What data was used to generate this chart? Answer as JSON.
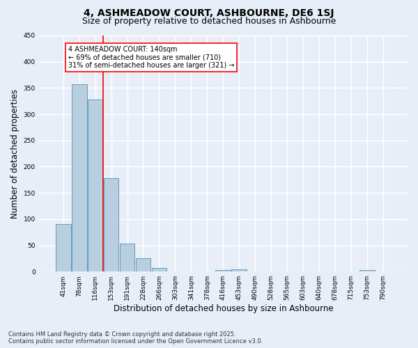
{
  "title": "4, ASHMEADOW COURT, ASHBOURNE, DE6 1SJ",
  "subtitle": "Size of property relative to detached houses in Ashbourne",
  "xlabel": "Distribution of detached houses by size in Ashbourne",
  "ylabel": "Number of detached properties",
  "categories": [
    "41sqm",
    "78sqm",
    "116sqm",
    "153sqm",
    "191sqm",
    "228sqm",
    "266sqm",
    "303sqm",
    "341sqm",
    "378sqm",
    "416sqm",
    "453sqm",
    "490sqm",
    "528sqm",
    "565sqm",
    "603sqm",
    "640sqm",
    "678sqm",
    "715sqm",
    "753sqm",
    "790sqm"
  ],
  "values": [
    90,
    357,
    328,
    178,
    54,
    25,
    7,
    0,
    0,
    0,
    3,
    4,
    0,
    0,
    0,
    0,
    0,
    0,
    0,
    3,
    0
  ],
  "bar_color": "#b8cfe0",
  "bar_edge_color": "#6699bb",
  "red_line_index": 2,
  "annotation_text": "4 ASHMEADOW COURT: 140sqm\n← 69% of detached houses are smaller (710)\n31% of semi-detached houses are larger (321) →",
  "annotation_box_color": "white",
  "annotation_box_edge_color": "red",
  "ylim": [
    0,
    450
  ],
  "yticks": [
    0,
    50,
    100,
    150,
    200,
    250,
    300,
    350,
    400,
    450
  ],
  "background_color": "#e8eef8",
  "grid_color": "white",
  "footer_line1": "Contains HM Land Registry data © Crown copyright and database right 2025.",
  "footer_line2": "Contains public sector information licensed under the Open Government Licence v3.0.",
  "title_fontsize": 10,
  "subtitle_fontsize": 9,
  "tick_fontsize": 6.5,
  "label_fontsize": 8.5,
  "annotation_fontsize": 7,
  "footer_fontsize": 6
}
